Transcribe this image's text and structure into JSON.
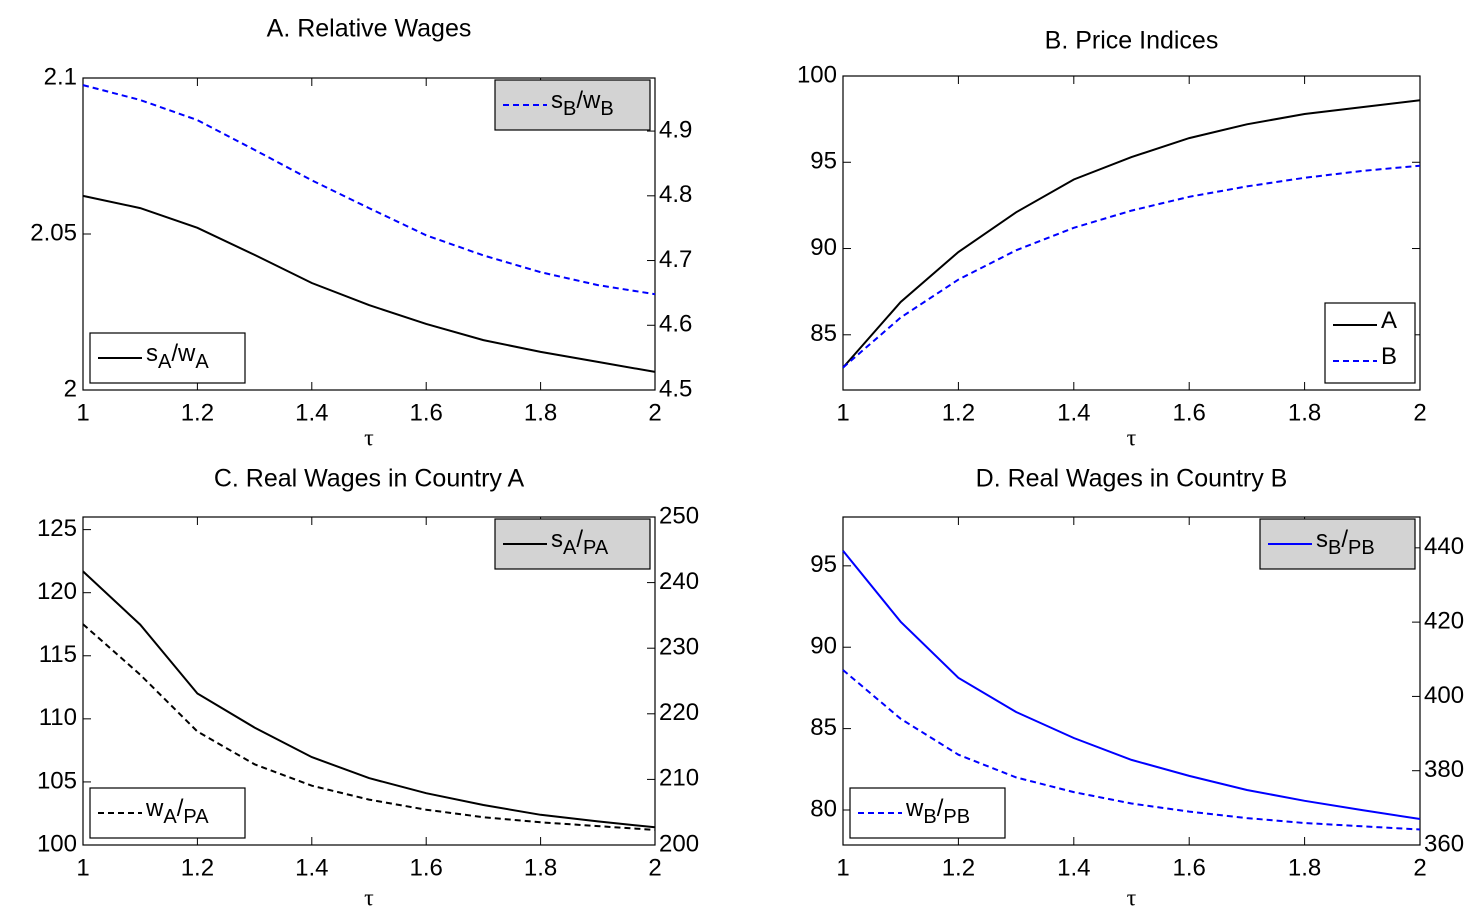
{
  "chart_data": [
    {
      "type": "line",
      "title": "A. Relative Wages",
      "xlabel": "τ",
      "x": [
        1,
        1.1,
        1.2,
        1.3,
        1.4,
        1.5,
        1.6,
        1.7,
        1.8,
        1.9,
        2
      ],
      "xlim": [
        1,
        2
      ],
      "xticks": [
        1,
        1.2,
        1.4,
        1.6,
        1.8,
        2
      ],
      "ylim": [
        2,
        2.1
      ],
      "yticks": [
        2,
        2.05,
        2.1
      ],
      "y2lim": [
        4.5,
        4.982
      ],
      "y2ticks": [
        4.5,
        4.6,
        4.7,
        4.8,
        4.9
      ],
      "series": [
        {
          "name": "sA/wA",
          "color": "#000000",
          "linestyle": "solid",
          "legend": "lower left",
          "values": [
            2.0622,
            2.0583,
            2.052,
            2.0433,
            2.0343,
            2.0272,
            2.0212,
            2.016,
            2.0122,
            2.009,
            2.0058
          ]
        },
        {
          "name": "sB/wB",
          "color": "#0000ff",
          "linestyle": "dashed",
          "axis": "y2",
          "legend": "upper right",
          "values": [
            4.971,
            4.948,
            4.917,
            4.871,
            4.824,
            4.781,
            4.739,
            4.708,
            4.682,
            4.662,
            4.648
          ]
        }
      ]
    },
    {
      "type": "line",
      "title": "B. Price Indices",
      "xlabel": "τ",
      "x": [
        1,
        1.1,
        1.2,
        1.3,
        1.4,
        1.5,
        1.6,
        1.7,
        1.8,
        1.9,
        2
      ],
      "xlim": [
        1,
        2
      ],
      "xticks": [
        1,
        1.2,
        1.4,
        1.6,
        1.8,
        2
      ],
      "ylim": [
        81.8,
        100
      ],
      "yticks": [
        85,
        90,
        95,
        100
      ],
      "series": [
        {
          "name": "A",
          "color": "#000000",
          "linestyle": "solid",
          "legend": "lower right",
          "values": [
            83.1,
            86.9,
            89.8,
            92.1,
            94.0,
            95.3,
            96.4,
            97.2,
            97.8,
            98.2,
            98.6
          ]
        },
        {
          "name": "B",
          "color": "#0000ff",
          "linestyle": "dashed",
          "legend": "lower right",
          "values": [
            83.1,
            86.0,
            88.2,
            89.9,
            91.2,
            92.2,
            93.0,
            93.6,
            94.1,
            94.5,
            94.8
          ]
        }
      ]
    },
    {
      "type": "line",
      "title": "C. Real Wages in Country A",
      "xlabel": "τ",
      "x": [
        1,
        1.1,
        1.2,
        1.3,
        1.4,
        1.5,
        1.6,
        1.7,
        1.8,
        1.9,
        2
      ],
      "xlim": [
        1,
        2
      ],
      "xticks": [
        1,
        1.2,
        1.4,
        1.6,
        1.8,
        2
      ],
      "ylim": [
        100,
        126
      ],
      "yticks": [
        100,
        105,
        110,
        115,
        120,
        125
      ],
      "y2lim": [
        200,
        250
      ],
      "y2ticks": [
        200,
        210,
        220,
        230,
        240,
        250
      ],
      "series": [
        {
          "name": "sA/PA",
          "color": "#000000",
          "linestyle": "solid",
          "axis": "y2",
          "legend": "upper right",
          "values": [
            241.7,
            233.6,
            223.1,
            217.9,
            213.4,
            210.2,
            207.9,
            206.1,
            204.6,
            203.6,
            202.7
          ]
        },
        {
          "name": "wA/PA",
          "color": "#000000",
          "linestyle": "dashed",
          "legend": "lower left",
          "values": [
            117.5,
            113.5,
            109.0,
            106.4,
            104.7,
            103.6,
            102.8,
            102.2,
            101.8,
            101.5,
            101.2
          ]
        }
      ]
    },
    {
      "type": "line",
      "title": "D. Real Wages in Country B",
      "xlabel": "τ",
      "x": [
        1,
        1.1,
        1.2,
        1.3,
        1.4,
        1.5,
        1.6,
        1.7,
        1.8,
        1.9,
        2
      ],
      "xlim": [
        1,
        2
      ],
      "xticks": [
        1,
        1.2,
        1.4,
        1.6,
        1.8,
        2
      ],
      "ylim": [
        77.85,
        98
      ],
      "yticks": [
        80,
        85,
        90,
        95
      ],
      "y2lim": [
        360,
        448.3
      ],
      "y2ticks": [
        360,
        380,
        400,
        420,
        440
      ],
      "series": [
        {
          "name": "sB/PB",
          "color": "#0000ff",
          "linestyle": "solid",
          "axis": "y2",
          "legend": "upper right",
          "values": [
            439.2,
            420.1,
            405.0,
            395.8,
            388.8,
            382.9,
            378.6,
            374.8,
            371.9,
            369.4,
            367.0
          ]
        },
        {
          "name": "wB/PB",
          "color": "#0000ff",
          "linestyle": "dashed",
          "legend": "lower left",
          "values": [
            88.6,
            85.6,
            83.4,
            82.0,
            81.1,
            80.4,
            79.9,
            79.5,
            79.2,
            79.0,
            78.8
          ]
        }
      ]
    }
  ]
}
